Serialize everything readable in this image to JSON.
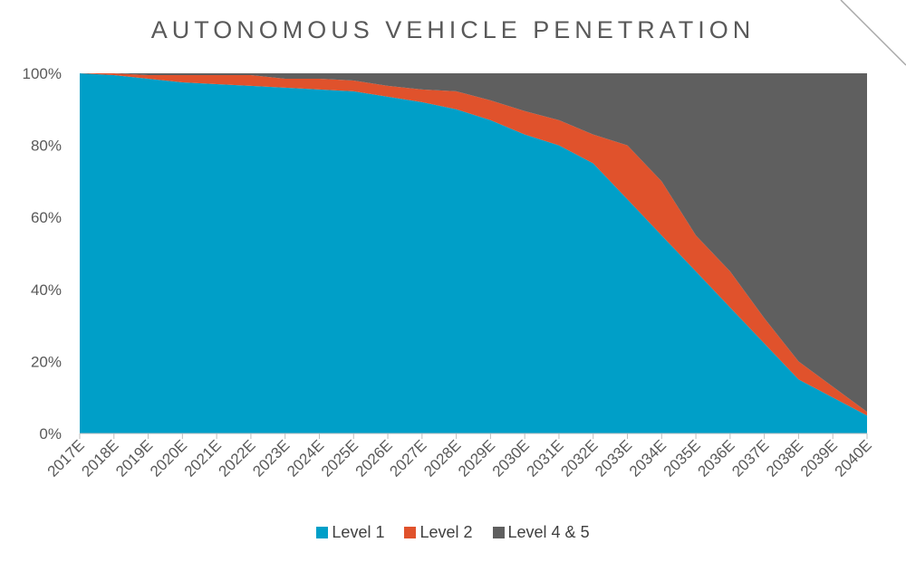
{
  "chart_data": {
    "type": "area",
    "stacked": true,
    "title": "AUTONOMOUS VEHICLE PENETRATION",
    "xlabel": "",
    "ylabel": "",
    "ylim": [
      0,
      100
    ],
    "y_ticks": [
      "0%",
      "20%",
      "40%",
      "60%",
      "80%",
      "100%"
    ],
    "categories": [
      "2017E",
      "2018E",
      "2019E",
      "2020E",
      "2021E",
      "2022E",
      "2023E",
      "2024E",
      "2025E",
      "2026E",
      "2027E",
      "2028E",
      "2029E",
      "2030E",
      "2031E",
      "2032E",
      "2033E",
      "2034E",
      "2035E",
      "2036E",
      "2037E",
      "2038E",
      "2039E",
      "2040E"
    ],
    "series": [
      {
        "name": "Level 1",
        "color": "#009fc8",
        "values": [
          100,
          99.5,
          98.5,
          97.5,
          97,
          96.5,
          96,
          95.5,
          95,
          93.5,
          92,
          90,
          87,
          83,
          80,
          75,
          65,
          55,
          45,
          35,
          25,
          15,
          10,
          5
        ]
      },
      {
        "name": "Level 2",
        "color": "#e0522c",
        "values": [
          0,
          0.5,
          1,
          2,
          2.5,
          3,
          2.5,
          3,
          3,
          3,
          3.5,
          5,
          5.5,
          6.5,
          7,
          8,
          15,
          15,
          10,
          10,
          7,
          5,
          3,
          1
        ]
      },
      {
        "name": "Level 4 & 5",
        "color": "#5f5f5f",
        "values": [
          0,
          0,
          0.5,
          0.5,
          0.5,
          0.5,
          1.5,
          1.5,
          2,
          3.5,
          4.5,
          5,
          7.5,
          10.5,
          13,
          17,
          20,
          30,
          45,
          55,
          68,
          80,
          87,
          94
        ]
      }
    ],
    "grid": false,
    "legend_position": "bottom"
  }
}
